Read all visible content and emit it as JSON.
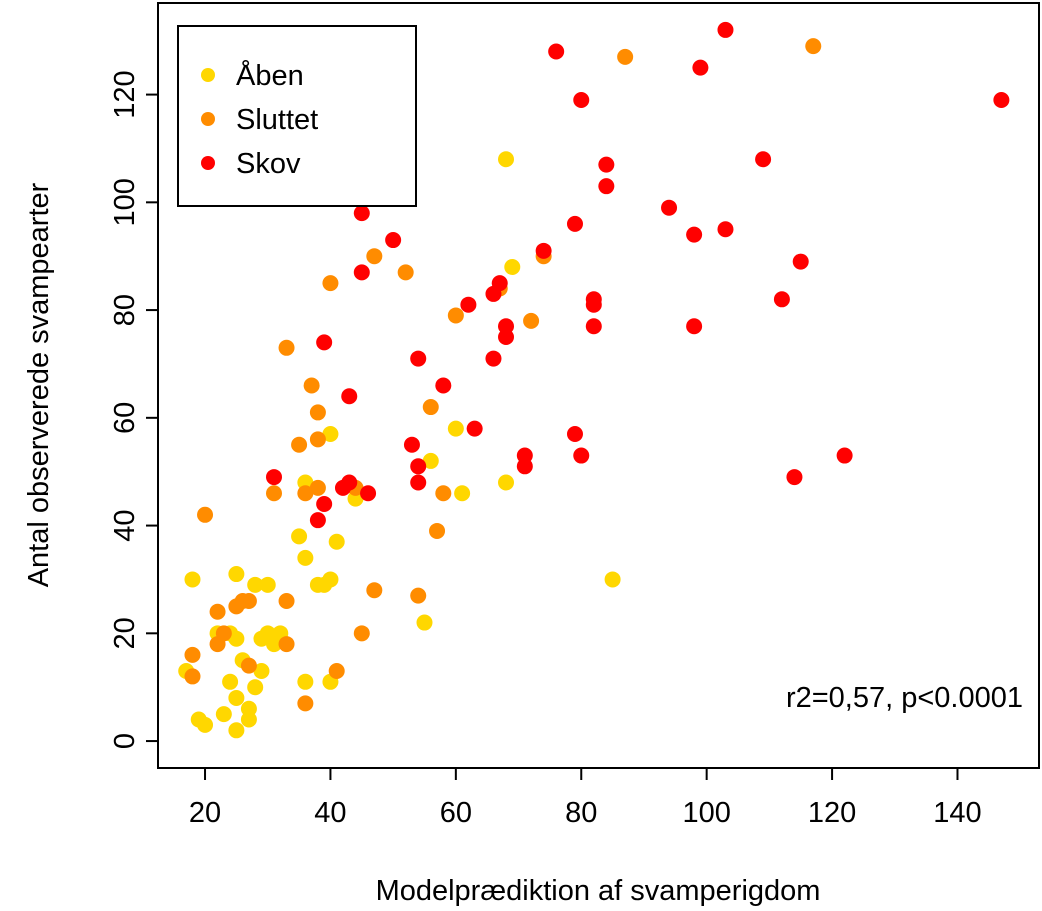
{
  "chart_data": {
    "type": "scatter",
    "title": "",
    "xlabel": "Modelprædiktion af svamperigdom",
    "ylabel": "Antal observerede svampearter",
    "xlim": [
      12.5,
      153
    ],
    "ylim": [
      -5,
      137
    ],
    "xticks": [
      20,
      40,
      60,
      80,
      100,
      120,
      140
    ],
    "yticks": [
      0,
      20,
      40,
      60,
      80,
      100,
      120
    ],
    "xtick_labels": [
      "20",
      "40",
      "60",
      "80",
      "100",
      "120",
      "140"
    ],
    "ytick_labels": [
      "0",
      "20",
      "40",
      "60",
      "80",
      "100",
      "120"
    ],
    "grid": false,
    "legend_position": "top-left",
    "annotation": "r2=0,57, p<0.0001",
    "series": [
      {
        "name": "Åben",
        "color": "#ffd700",
        "points": [
          [
            18,
            30
          ],
          [
            17,
            13
          ],
          [
            19,
            4
          ],
          [
            20,
            3
          ],
          [
            22,
            20
          ],
          [
            23,
            5
          ],
          [
            24,
            11
          ],
          [
            25,
            31
          ],
          [
            25,
            19
          ],
          [
            24,
            20
          ],
          [
            25,
            8
          ],
          [
            26,
            15
          ],
          [
            25,
            2
          ],
          [
            27,
            4
          ],
          [
            27,
            6
          ],
          [
            28,
            29
          ],
          [
            28,
            10
          ],
          [
            29,
            19
          ],
          [
            29,
            13
          ],
          [
            30,
            29
          ],
          [
            30,
            20
          ],
          [
            31,
            18
          ],
          [
            32,
            19
          ],
          [
            32,
            20
          ],
          [
            35,
            38
          ],
          [
            36,
            48
          ],
          [
            36,
            34
          ],
          [
            36,
            11
          ],
          [
            38,
            29
          ],
          [
            39,
            29
          ],
          [
            40,
            30
          ],
          [
            40,
            11
          ],
          [
            40,
            57
          ],
          [
            41,
            37
          ],
          [
            44,
            45
          ],
          [
            55,
            22
          ],
          [
            56,
            52
          ],
          [
            60,
            58
          ],
          [
            61,
            46
          ],
          [
            68,
            108
          ],
          [
            68,
            48
          ],
          [
            69,
            88
          ],
          [
            85,
            30
          ]
        ]
      },
      {
        "name": "Sluttet",
        "color": "#ff8c00",
        "points": [
          [
            18,
            16
          ],
          [
            18,
            12
          ],
          [
            20,
            42
          ],
          [
            22,
            24
          ],
          [
            22,
            18
          ],
          [
            23,
            20
          ],
          [
            25,
            25
          ],
          [
            26,
            26
          ],
          [
            27,
            26
          ],
          [
            27,
            14
          ],
          [
            31,
            46
          ],
          [
            33,
            73
          ],
          [
            33,
            26
          ],
          [
            33,
            18
          ],
          [
            35,
            55
          ],
          [
            36,
            46
          ],
          [
            36,
            7
          ],
          [
            37,
            66
          ],
          [
            38,
            61
          ],
          [
            38,
            56
          ],
          [
            38,
            47
          ],
          [
            40,
            85
          ],
          [
            41,
            13
          ],
          [
            44,
            47
          ],
          [
            45,
            20
          ],
          [
            47,
            90
          ],
          [
            47,
            28
          ],
          [
            52,
            87
          ],
          [
            54,
            27
          ],
          [
            56,
            62
          ],
          [
            57,
            39
          ],
          [
            58,
            46
          ],
          [
            60,
            79
          ],
          [
            67,
            84
          ],
          [
            72,
            78
          ],
          [
            74,
            90
          ],
          [
            87,
            127
          ],
          [
            117,
            129
          ]
        ]
      },
      {
        "name": "Skov",
        "color": "#ff0000",
        "points": [
          [
            31,
            49
          ],
          [
            38,
            41
          ],
          [
            39,
            74
          ],
          [
            39,
            44
          ],
          [
            42,
            47
          ],
          [
            43,
            64
          ],
          [
            43,
            48
          ],
          [
            45,
            87
          ],
          [
            45,
            98
          ],
          [
            46,
            46
          ],
          [
            50,
            93
          ],
          [
            53,
            55
          ],
          [
            54,
            51
          ],
          [
            54,
            48
          ],
          [
            54,
            71
          ],
          [
            58,
            66
          ],
          [
            62,
            81
          ],
          [
            63,
            58
          ],
          [
            66,
            71
          ],
          [
            66,
            83
          ],
          [
            67,
            85
          ],
          [
            68,
            77
          ],
          [
            68,
            75
          ],
          [
            71,
            51
          ],
          [
            71,
            53
          ],
          [
            74,
            91
          ],
          [
            76,
            128
          ],
          [
            79,
            96
          ],
          [
            79,
            57
          ],
          [
            80,
            119
          ],
          [
            80,
            53
          ],
          [
            82,
            81
          ],
          [
            82,
            82
          ],
          [
            82,
            77
          ],
          [
            84,
            103
          ],
          [
            84,
            107
          ],
          [
            94,
            99
          ],
          [
            98,
            94
          ],
          [
            98,
            77
          ],
          [
            99,
            125
          ],
          [
            103,
            95
          ],
          [
            103,
            132
          ],
          [
            109,
            108
          ],
          [
            112,
            82
          ],
          [
            114,
            49
          ],
          [
            115,
            89
          ],
          [
            122,
            53
          ],
          [
            147,
            119
          ]
        ]
      }
    ]
  }
}
